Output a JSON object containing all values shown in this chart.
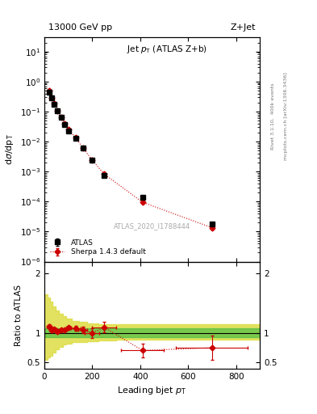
{
  "title_top": "13000 GeV pp",
  "title_right": "Z+Jet",
  "plot_title": "Jet p_T (ATLAS Z+b)",
  "watermark": "ATLAS_2020_I1788444",
  "right_label_top": "Rivet 3.1.10,  400k events",
  "right_label_bot": "mcplots.cern.ch [arXiv:1306.3436]",
  "xlabel": "Leading bjet p_{T}",
  "ylabel_main": "dσ/dp_T",
  "ylabel_ratio": "Ratio to ATLAS",
  "atlas_x": [
    20,
    30,
    40,
    55,
    70,
    85,
    100,
    130,
    160,
    200,
    250,
    410,
    700
  ],
  "atlas_y": [
    0.45,
    0.28,
    0.175,
    0.105,
    0.063,
    0.038,
    0.023,
    0.013,
    0.006,
    0.0024,
    0.00075,
    0.000135,
    1.8e-05
  ],
  "atlas_yerr_lo": [
    0.03,
    0.02,
    0.012,
    0.008,
    0.005,
    0.003,
    0.002,
    0.001,
    0.0005,
    0.0002,
    6e-05,
    1.5e-05,
    2e-06
  ],
  "atlas_yerr_hi": [
    0.03,
    0.02,
    0.012,
    0.008,
    0.005,
    0.003,
    0.002,
    0.001,
    0.0005,
    0.0002,
    6e-05,
    1.5e-05,
    2e-06
  ],
  "sherpa_x": [
    20,
    30,
    40,
    55,
    70,
    85,
    100,
    130,
    160,
    200,
    250,
    410,
    700
  ],
  "sherpa_y": [
    0.5,
    0.295,
    0.185,
    0.108,
    0.066,
    0.04,
    0.025,
    0.014,
    0.0063,
    0.0024,
    0.00082,
    9.5e-05,
    1.35e-05
  ],
  "sherpa_yerr_lo": [
    0.002,
    0.002,
    0.002,
    0.001,
    0.001,
    0.001,
    0.001,
    0.001,
    0.0003,
    0.0001,
    4e-05,
    8e-06,
    1.5e-06
  ],
  "sherpa_yerr_hi": [
    0.002,
    0.002,
    0.002,
    0.001,
    0.001,
    0.001,
    0.001,
    0.001,
    0.0003,
    0.0001,
    4e-05,
    8e-06,
    1.5e-06
  ],
  "ratio_x": [
    20,
    30,
    40,
    55,
    70,
    85,
    100,
    130,
    160,
    200,
    250,
    410,
    700
  ],
  "ratio_y": [
    1.11,
    1.054,
    1.057,
    1.029,
    1.048,
    1.053,
    1.087,
    1.077,
    1.05,
    1.0,
    1.093,
    0.703,
    0.75
  ],
  "ratio_yerr": [
    0.04,
    0.04,
    0.04,
    0.03,
    0.03,
    0.03,
    0.03,
    0.04,
    0.06,
    0.08,
    0.09,
    0.12,
    0.2
  ],
  "ratio_xerr_lo": [
    10,
    10,
    10,
    10,
    10,
    10,
    10,
    20,
    20,
    30,
    50,
    90,
    150
  ],
  "ratio_xerr_hi": [
    10,
    10,
    10,
    10,
    10,
    10,
    10,
    20,
    20,
    30,
    50,
    90,
    150
  ],
  "band_x": [
    0,
    15,
    25,
    35,
    47,
    62,
    77,
    92,
    115,
    145,
    180,
    225,
    300,
    500,
    900
  ],
  "green_lo": [
    0.93,
    0.93,
    0.93,
    0.93,
    0.93,
    0.93,
    0.93,
    0.93,
    0.93,
    0.93,
    0.93,
    0.93,
    0.93,
    0.93,
    0.93
  ],
  "green_hi": [
    1.07,
    1.07,
    1.07,
    1.07,
    1.07,
    1.07,
    1.07,
    1.07,
    1.07,
    1.07,
    1.07,
    1.07,
    1.07,
    1.07,
    1.07
  ],
  "yellow_lo": [
    0.55,
    0.58,
    0.62,
    0.67,
    0.72,
    0.77,
    0.8,
    0.82,
    0.84,
    0.85,
    0.86,
    0.87,
    0.88,
    0.88,
    0.88
  ],
  "yellow_hi": [
    1.65,
    1.6,
    1.52,
    1.44,
    1.38,
    1.32,
    1.28,
    1.24,
    1.2,
    1.18,
    1.16,
    1.15,
    1.14,
    1.14,
    1.14
  ],
  "xlim": [
    0,
    900
  ],
  "ylim_main": [
    1e-06,
    30
  ],
  "ylim_ratio": [
    0.4,
    2.2
  ],
  "ratio_yticks": [
    0.5,
    1.0,
    2.0
  ],
  "ratio_yticklabels": [
    "0.5",
    "1",
    "2"
  ],
  "color_atlas": "#000000",
  "color_sherpa": "#cc0000",
  "color_green": "#44bb44",
  "color_yellow": "#dddd44",
  "bg_color": "#ffffff"
}
